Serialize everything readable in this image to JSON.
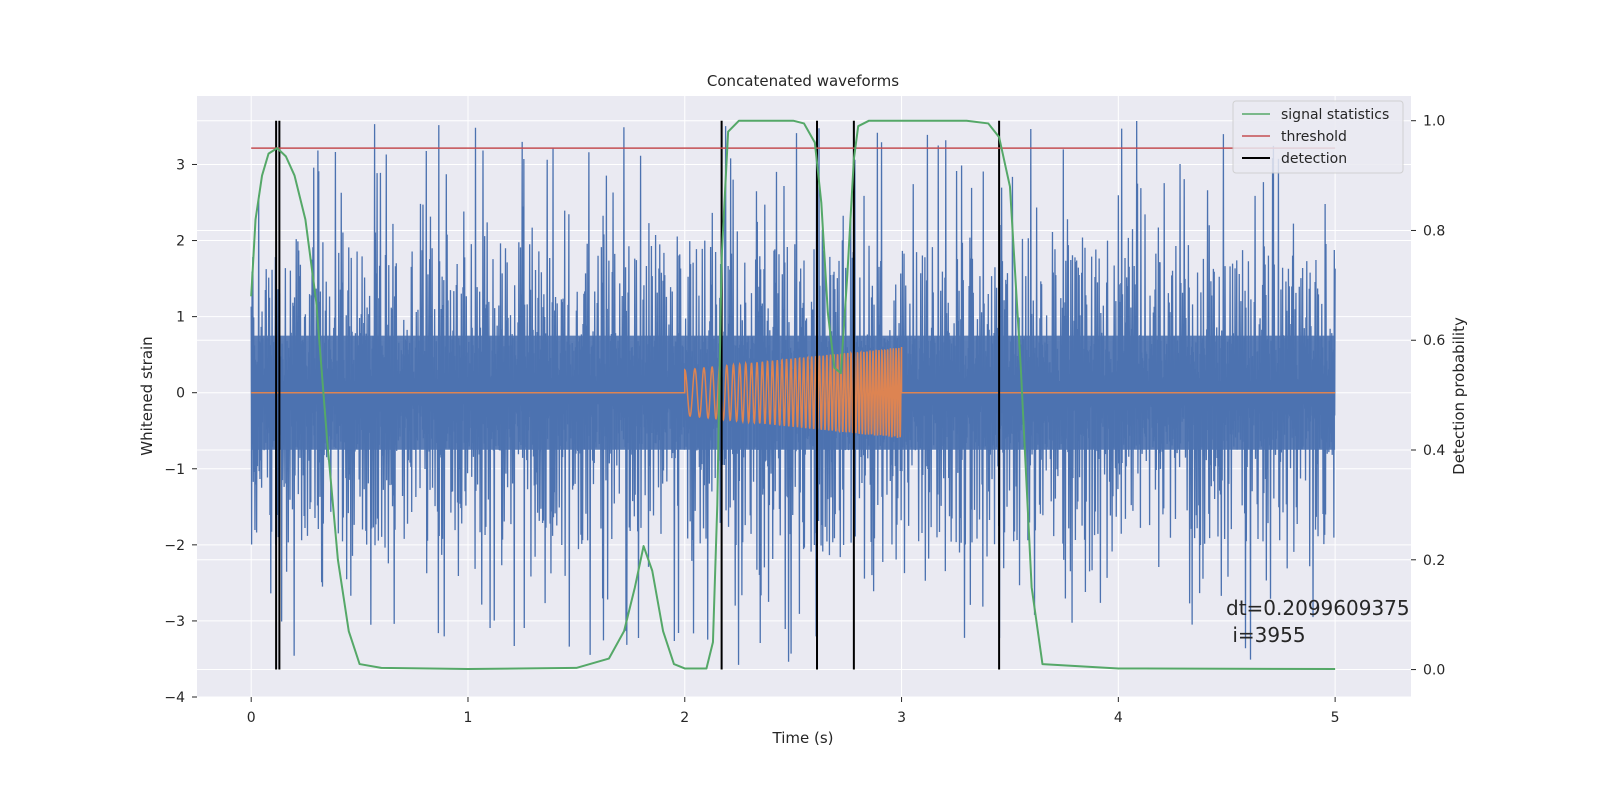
{
  "chart_data": {
    "type": "line",
    "title": "Concatenated waveforms",
    "xlabel": "Time (s)",
    "ylabel": "Whitened strain",
    "ylabel_right": "Detection probability",
    "xlim": [
      -0.25,
      5.35
    ],
    "ylim": [
      -4.0,
      3.9
    ],
    "ylim_right": [
      -0.05,
      1.045
    ],
    "xticks": [
      "0",
      "1",
      "2",
      "3",
      "4",
      "5"
    ],
    "yticks": [
      "3",
      "2",
      "1",
      "0",
      "−1",
      "−2",
      "−3",
      "−4"
    ],
    "yticks_right": [
      "1.0",
      "0.8",
      "0.6",
      "0.4",
      "0.2",
      "0.0"
    ],
    "grid": true,
    "legend_position": "top-right",
    "legend": [
      "signal statistics",
      "threshold",
      "detection"
    ],
    "colors": {
      "strain": "#4c72b0",
      "injected": "#dd8452",
      "signal_statistics": "#55a868",
      "threshold": "#c44e52",
      "detection": "#000000",
      "background": "#eaeaf2",
      "grid": "#ffffff"
    },
    "strain_noise": {
      "x_range": [
        0,
        5
      ],
      "core_band": [
        -0.75,
        0.75
      ],
      "peak_range": [
        -3.6,
        3.6
      ]
    },
    "injected_chirp": {
      "x_range": [
        2.0,
        3.0
      ],
      "amplitude_start": 0.3,
      "amplitude_end": 0.6,
      "baseline": 0.0
    },
    "signal_statistics": {
      "x": [
        0.0,
        0.02,
        0.05,
        0.08,
        0.12,
        0.16,
        0.2,
        0.25,
        0.3,
        0.35,
        0.4,
        0.45,
        0.5,
        0.6,
        1.0,
        1.5,
        1.65,
        1.72,
        1.77,
        1.81,
        1.85,
        1.9,
        1.95,
        2.0,
        2.1,
        2.13,
        2.15,
        2.17,
        2.2,
        2.25,
        2.3,
        2.5,
        2.55,
        2.6,
        2.63,
        2.66,
        2.69,
        2.72,
        2.75,
        2.78,
        2.8,
        2.85,
        2.9,
        3.0,
        3.3,
        3.4,
        3.45,
        3.5,
        3.55,
        3.6,
        3.65,
        4.0,
        5.0
      ],
      "y": [
        0.68,
        0.82,
        0.9,
        0.94,
        0.95,
        0.935,
        0.9,
        0.82,
        0.67,
        0.42,
        0.2,
        0.07,
        0.01,
        0.003,
        0.001,
        0.003,
        0.02,
        0.07,
        0.15,
        0.225,
        0.18,
        0.07,
        0.01,
        0.002,
        0.002,
        0.05,
        0.3,
        0.75,
        0.98,
        1.0,
        1.0,
        1.0,
        0.995,
        0.96,
        0.85,
        0.65,
        0.55,
        0.54,
        0.72,
        0.93,
        0.99,
        1.0,
        1.0,
        1.0,
        1.0,
        0.995,
        0.97,
        0.88,
        0.55,
        0.15,
        0.01,
        0.002,
        0.001
      ]
    },
    "threshold": {
      "value": 0.95,
      "x_range": [
        0,
        5
      ]
    },
    "detections": [
      0.115,
      0.13,
      2.17,
      2.61,
      2.78,
      3.45
    ],
    "annotation": {
      "line1": "dt=0.2099609375",
      "line2": " i=3955"
    }
  }
}
